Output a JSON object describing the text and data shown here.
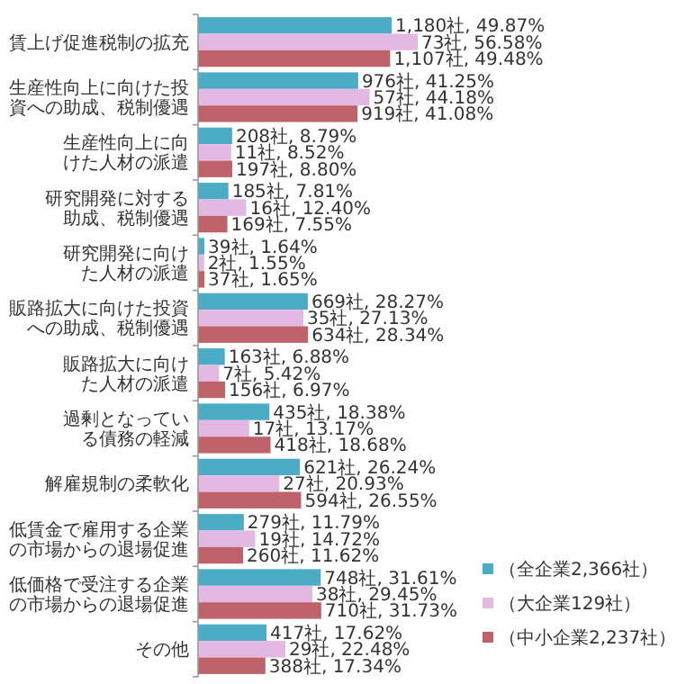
{
  "chart_data": {
    "type": "bar",
    "orientation": "horizontal",
    "legend": "bottom right",
    "categories": [
      "賃上げ促進税制の拡充",
      "生産性向上に向けた投資への助成、税制優遇",
      "生産性向上に向けた人材の派遣",
      "研究開発に対する助成、税制優遇",
      "研究開発に向けた人材の派遣",
      "販路拡大に向けた投資への助成、税制優遇",
      "販路拡大に向けた人材の派遣",
      "過剰となっている債務の軽減",
      "解雇規制の柔軟化",
      "低賃金で雇用する企業の市場からの退場促進",
      "低価格で受注する企業の市場からの退場促進",
      "その他"
    ],
    "series": [
      {
        "name": "（全企業2,366社）",
        "color": "#4bacc6",
        "values": [
          49.87,
          41.25,
          8.79,
          7.81,
          1.64,
          28.27,
          6.88,
          18.38,
          26.24,
          11.79,
          31.61,
          17.62
        ],
        "value_labels": [
          "1,180社, 49.87%",
          "976社, 41.25%",
          "208社, 8.79%",
          "185社, 7.81%",
          "39社, 1.64%",
          "669社, 28.27%",
          "163社, 6.88%",
          "435社, 18.38%",
          "621社, 26.24%",
          "279社, 11.79%",
          "748社, 31.61%",
          "417社, 17.62%"
        ]
      },
      {
        "name": "（大企業129社）",
        "color": "#e3b8e3",
        "values": [
          56.58,
          44.18,
          8.52,
          12.4,
          1.55,
          27.13,
          5.42,
          13.17,
          20.93,
          14.72,
          29.45,
          22.48
        ],
        "value_labels": [
          "73社, 56.58%",
          "57社, 44.18%",
          "11社, 8.52%",
          "16社, 12.40%",
          "2社, 1.55%",
          "35社, 27.13%",
          "7社, 5.42%",
          "17社, 13.17%",
          "27社, 20.93%",
          "19社, 14.72%",
          "38社, 29.45%",
          "29社, 22.48%"
        ]
      },
      {
        "name": "（中小企業2,237社）",
        "color": "#c0626a",
        "values": [
          49.48,
          41.08,
          8.8,
          7.55,
          1.65,
          28.34,
          6.97,
          18.68,
          26.55,
          11.62,
          31.73,
          17.34
        ],
        "value_labels": [
          "1,107社, 49.48%",
          "919社, 41.08%",
          "197社, 8.80%",
          "169社, 7.55%",
          "37社, 1.65%",
          "634社, 28.34%",
          "156社, 6.97%",
          "418社, 18.68%",
          "594社, 26.55%",
          "260社, 11.62%",
          "710社, 31.73%",
          "388社, 17.34%"
        ]
      }
    ]
  }
}
